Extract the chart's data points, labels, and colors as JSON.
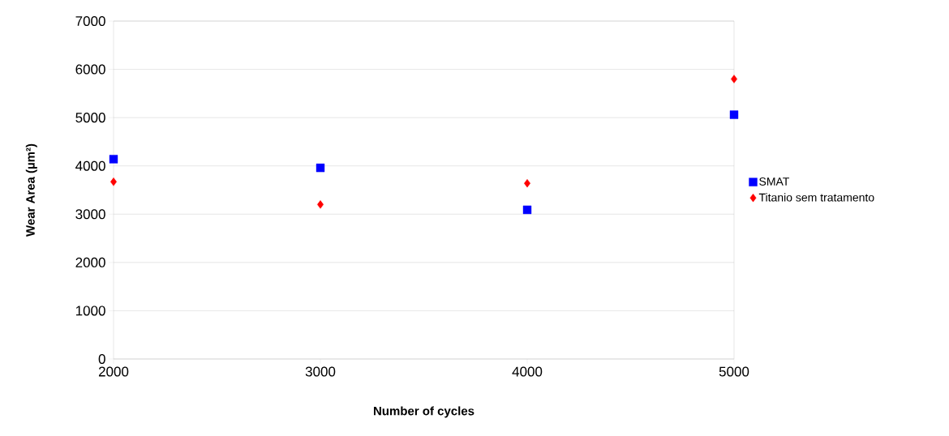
{
  "chart_data": {
    "type": "scatter",
    "xlabel": "Number of cycles",
    "ylabel": "Wear Area (µm²)",
    "x": [
      2000,
      3000,
      4000,
      5000
    ],
    "series": [
      {
        "name": "SMAT",
        "color": "#0000ff",
        "marker": "square",
        "values": [
          4140,
          3960,
          3090,
          5060
        ]
      },
      {
        "name": "Titanio sem tratamento",
        "color": "#ff0000",
        "marker": "diamond",
        "values": [
          3670,
          3200,
          3640,
          5800
        ]
      }
    ],
    "xlim": [
      2000,
      5000
    ],
    "xticks": [
      2000,
      3000,
      4000,
      5000
    ],
    "ylim": [
      0,
      7000
    ],
    "yticks": [
      0,
      1000,
      2000,
      3000,
      4000,
      5000,
      6000,
      7000
    ],
    "grid": "y",
    "legend": "right"
  }
}
